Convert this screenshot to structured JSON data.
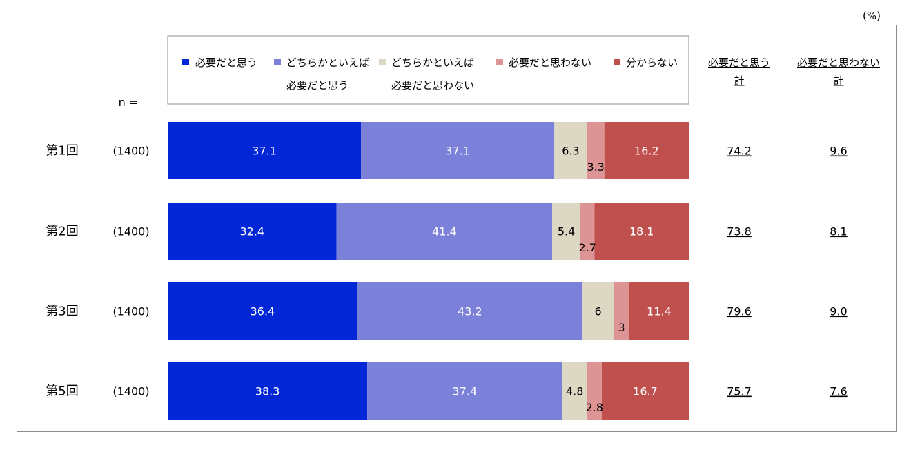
{
  "unit": "(%)",
  "n_label": "n =",
  "colors": {
    "series": [
      "#0326d6",
      "#7b80d8",
      "#ddd8c4",
      "#dc9594",
      "#c0504d"
    ],
    "label_on_dark": "#ffffff",
    "label_on_light": "#000000",
    "frame": "#8c8c8c"
  },
  "chart_data": {
    "type": "bar",
    "orientation": "horizontal",
    "stacked": true,
    "percent": true,
    "xlim": [
      0,
      100
    ],
    "legend_position": "top",
    "grid": false,
    "categories": [
      "第1回",
      "第2回",
      "第3回",
      "第5回"
    ],
    "n": [
      "(1400)",
      "(1400)",
      "(1400)",
      "(1400)"
    ],
    "series": [
      {
        "legend_lines": [
          "必要だと思う"
        ],
        "values": [
          37.1,
          32.4,
          36.4,
          38.3
        ]
      },
      {
        "legend_lines": [
          "どちらかといえば",
          "必要だと思う"
        ],
        "values": [
          37.1,
          41.4,
          43.2,
          37.4
        ]
      },
      {
        "legend_lines": [
          "どちらかといえば",
          "必要だと思わない"
        ],
        "values": [
          6.3,
          5.4,
          6.0,
          4.8
        ]
      },
      {
        "legend_lines": [
          "必要だと思わない"
        ],
        "values": [
          3.3,
          2.7,
          3.0,
          2.8
        ]
      },
      {
        "legend_lines": [
          "分からない"
        ],
        "values": [
          16.2,
          18.1,
          11.4,
          16.7
        ]
      }
    ],
    "totals": [
      {
        "header_lines": [
          "必要だと思う",
          "計"
        ],
        "values": [
          "74.2",
          "73.8",
          "79.6",
          "75.7"
        ]
      },
      {
        "header_lines": [
          "必要だと思わない",
          "計"
        ],
        "values": [
          "9.6",
          "8.1",
          "9.0",
          "7.6"
        ]
      }
    ]
  }
}
